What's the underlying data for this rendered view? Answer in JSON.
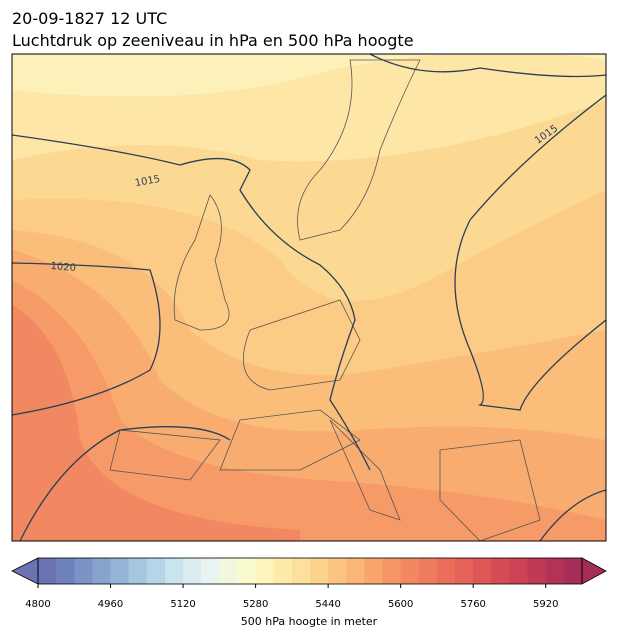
{
  "header": {
    "date": "20-09-1827 12 UTC",
    "title": "Luchtdruk op zeeniveau in hPa en 500 hPa hoogte"
  },
  "map": {
    "isobar_labels": [
      "1015",
      "1020",
      "1015"
    ]
  },
  "colorbar": {
    "label": "500 hPa hoogte in meter",
    "lim": [
      4800,
      6000
    ],
    "ticks": [
      4800,
      4960,
      5120,
      5280,
      5440,
      5600,
      5760,
      5920
    ],
    "colors": [
      "#6b73b3",
      "#7082bc",
      "#7b93c5",
      "#87a4cd",
      "#95b5d6",
      "#a5c6df",
      "#b6d5e8",
      "#c9e3ef",
      "#dcedf2",
      "#e9f4f0",
      "#f2f8e0",
      "#f9facd",
      "#fdf5bb",
      "#fdebaa",
      "#fde09b",
      "#fcd38d",
      "#fbc581",
      "#fab676",
      "#f8a66d",
      "#f69667",
      "#f28862",
      "#ee7b5e",
      "#ea6e5b",
      "#e46258",
      "#dd5756",
      "#d54c55",
      "#cb4355",
      "#c03a55",
      "#b33356",
      "#a52d57"
    ]
  }
}
